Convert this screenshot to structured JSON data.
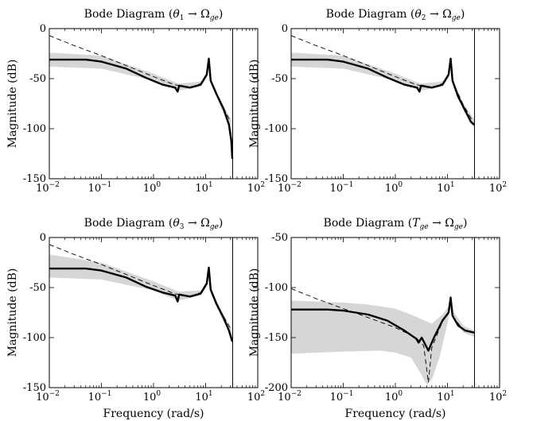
{
  "chart_data": [
    {
      "type": "line",
      "title": "Bode Diagram (θ₁ → Ω_ge)",
      "xlabel": "",
      "ylabel": "Magnitude (dB)",
      "xscale": "log",
      "xlim": [
        0.01,
        100
      ],
      "ylim": [
        -150,
        0
      ],
      "x_ticks": [
        "10^-2",
        "10^-1",
        "10^0",
        "10^1",
        "10^2"
      ],
      "y_ticks": [
        "0",
        "-50",
        "-100",
        "-150"
      ],
      "vline_x": 33,
      "grid": false,
      "series": [
        {
          "style": "solid-thick",
          "points": [
            [
              0.01,
              -31
            ],
            [
              0.05,
              -31
            ],
            [
              0.1,
              -33
            ],
            [
              0.3,
              -40
            ],
            [
              0.7,
              -49
            ],
            [
              1.5,
              -56
            ],
            [
              2.6,
              -59
            ],
            [
              2.9,
              -63
            ],
            [
              3.1,
              -57
            ],
            [
              5,
              -59
            ],
            [
              8,
              -56
            ],
            [
              10.5,
              -46
            ],
            [
              11.5,
              -30
            ],
            [
              12.5,
              -52
            ],
            [
              16,
              -65
            ],
            [
              22,
              -80
            ],
            [
              28,
              -96
            ],
            [
              31,
              -112
            ],
            [
              32.5,
              -130
            ]
          ]
        },
        {
          "style": "dashed",
          "points": [
            [
              0.01,
              -7
            ],
            [
              0.03,
              -17
            ],
            [
              0.1,
              -27
            ],
            [
              0.3,
              -37
            ],
            [
              1,
              -48
            ],
            [
              2.5,
              -56
            ],
            [
              5,
              -59
            ],
            [
              8,
              -55
            ],
            [
              10.5,
              -45
            ],
            [
              11.5,
              -31
            ],
            [
              13,
              -55
            ],
            [
              20,
              -75
            ],
            [
              30,
              -93
            ]
          ]
        },
        {
          "style": "band",
          "upper": [
            [
              0.01,
              -24
            ],
            [
              0.1,
              -27
            ],
            [
              1,
              -45
            ],
            [
              3,
              -55
            ],
            [
              8,
              -53
            ],
            [
              10.5,
              -44
            ],
            [
              11.5,
              -29
            ],
            [
              13,
              -52
            ],
            [
              20,
              -73
            ],
            [
              30,
              -90
            ],
            [
              32.5,
              -110
            ]
          ],
          "lower": [
            [
              0.01,
              -38
            ],
            [
              0.1,
              -40
            ],
            [
              1,
              -52
            ],
            [
              3,
              -62
            ],
            [
              8,
              -58
            ],
            [
              10.5,
              -49
            ],
            [
              11.5,
              -33
            ],
            [
              13,
              -57
            ],
            [
              20,
              -80
            ],
            [
              30,
              -97
            ],
            [
              32.5,
              -128
            ]
          ]
        }
      ]
    },
    {
      "type": "line",
      "title": "Bode Diagram (θ₂ → Ω_ge)",
      "xlabel": "",
      "ylabel": "Magnitude (dB)",
      "xscale": "log",
      "xlim": [
        0.01,
        100
      ],
      "ylim": [
        -150,
        0
      ],
      "x_ticks": [
        "10^-2",
        "10^-1",
        "10^0",
        "10^1",
        "10^2"
      ],
      "y_ticks": [
        "0",
        "-50",
        "-100",
        "-150"
      ],
      "vline_x": 33,
      "grid": false,
      "series": [
        {
          "style": "solid-thick",
          "points": [
            [
              0.01,
              -31
            ],
            [
              0.05,
              -31
            ],
            [
              0.1,
              -33
            ],
            [
              0.3,
              -40
            ],
            [
              0.7,
              -49
            ],
            [
              1.5,
              -56
            ],
            [
              2.6,
              -59
            ],
            [
              2.9,
              -63
            ],
            [
              3.1,
              -57
            ],
            [
              5,
              -59
            ],
            [
              8,
              -56
            ],
            [
              10.5,
              -46
            ],
            [
              11.5,
              -30
            ],
            [
              12.5,
              -52
            ],
            [
              16,
              -68
            ],
            [
              22,
              -82
            ],
            [
              28,
              -93
            ],
            [
              32.5,
              -96
            ]
          ]
        },
        {
          "style": "dashed",
          "points": [
            [
              0.01,
              -7
            ],
            [
              0.03,
              -17
            ],
            [
              0.1,
              -27
            ],
            [
              0.3,
              -37
            ],
            [
              1,
              -48
            ],
            [
              2.5,
              -56
            ],
            [
              5,
              -59
            ],
            [
              8,
              -55
            ],
            [
              10.5,
              -45
            ],
            [
              11.5,
              -31
            ],
            [
              13,
              -55
            ],
            [
              20,
              -76
            ],
            [
              30,
              -92
            ]
          ]
        },
        {
          "style": "band",
          "upper": [
            [
              0.01,
              -24
            ],
            [
              0.1,
              -27
            ],
            [
              1,
              -45
            ],
            [
              3,
              -55
            ],
            [
              8,
              -53
            ],
            [
              10.5,
              -44
            ],
            [
              11.5,
              -29
            ],
            [
              13,
              -52
            ],
            [
              20,
              -74
            ],
            [
              30,
              -88
            ],
            [
              32.5,
              -90
            ]
          ],
          "lower": [
            [
              0.01,
              -38
            ],
            [
              0.1,
              -40
            ],
            [
              1,
              -52
            ],
            [
              3,
              -62
            ],
            [
              8,
              -58
            ],
            [
              10.5,
              -49
            ],
            [
              11.5,
              -33
            ],
            [
              13,
              -57
            ],
            [
              20,
              -81
            ],
            [
              30,
              -97
            ],
            [
              32.5,
              -99
            ]
          ]
        }
      ]
    },
    {
      "type": "line",
      "title": "Bode Diagram (θ₃ → Ω_ge)",
      "xlabel": "Frequency (rad/s)",
      "ylabel": "Magnitude (dB)",
      "xscale": "log",
      "xlim": [
        0.01,
        100
      ],
      "ylim": [
        -150,
        0
      ],
      "x_ticks": [
        "10^-2",
        "10^-1",
        "10^0",
        "10^1",
        "10^2"
      ],
      "y_ticks": [
        "0",
        "-50",
        "-100",
        "-150"
      ],
      "vline_x": 33,
      "grid": false,
      "series": [
        {
          "style": "solid-thick",
          "points": [
            [
              0.01,
              -31
            ],
            [
              0.05,
              -31
            ],
            [
              0.1,
              -33
            ],
            [
              0.3,
              -40
            ],
            [
              0.7,
              -49
            ],
            [
              1.5,
              -55
            ],
            [
              2.6,
              -58
            ],
            [
              2.9,
              -64
            ],
            [
              3.1,
              -57
            ],
            [
              5,
              -59
            ],
            [
              8,
              -56
            ],
            [
              10.5,
              -46
            ],
            [
              11.5,
              -30
            ],
            [
              12.5,
              -52
            ],
            [
              16,
              -66
            ],
            [
              22,
              -80
            ],
            [
              28,
              -93
            ],
            [
              32.5,
              -104
            ]
          ]
        },
        {
          "style": "dashed",
          "points": [
            [
              0.01,
              -7
            ],
            [
              0.03,
              -17
            ],
            [
              0.1,
              -27
            ],
            [
              0.3,
              -37
            ],
            [
              1,
              -48
            ],
            [
              2.5,
              -56
            ],
            [
              5,
              -59
            ],
            [
              8,
              -55
            ],
            [
              10.5,
              -45
            ],
            [
              11.5,
              -31
            ],
            [
              13,
              -55
            ],
            [
              20,
              -75
            ],
            [
              30,
              -91
            ]
          ]
        },
        {
          "style": "band",
          "upper": [
            [
              0.01,
              -17
            ],
            [
              0.1,
              -25
            ],
            [
              1,
              -44
            ],
            [
              3,
              -54
            ],
            [
              8,
              -53
            ],
            [
              10.5,
              -44
            ],
            [
              11.5,
              -29
            ],
            [
              13,
              -52
            ],
            [
              20,
              -73
            ],
            [
              30,
              -89
            ],
            [
              32.5,
              -97
            ]
          ],
          "lower": [
            [
              0.01,
              -40
            ],
            [
              0.1,
              -42
            ],
            [
              1,
              -53
            ],
            [
              3,
              -63
            ],
            [
              8,
              -58
            ],
            [
              10.5,
              -49
            ],
            [
              11.5,
              -33
            ],
            [
              13,
              -57
            ],
            [
              20,
              -80
            ],
            [
              30,
              -97
            ],
            [
              32.5,
              -107
            ]
          ]
        }
      ]
    },
    {
      "type": "line",
      "title": "Bode Diagram (T_ge → Ω_ge)",
      "xlabel": "Frequency (rad/s)",
      "ylabel": "Magnitude (dB)",
      "xscale": "log",
      "xlim": [
        0.01,
        100
      ],
      "ylim": [
        -200,
        -50
      ],
      "x_ticks": [
        "10^-2",
        "10^-1",
        "10^0",
        "10^1",
        "10^2"
      ],
      "y_ticks": [
        "-50",
        "-100",
        "-150",
        "-200"
      ],
      "vline_x": 33,
      "grid": false,
      "series": [
        {
          "style": "solid-thick",
          "points": [
            [
              0.01,
              -122
            ],
            [
              0.05,
              -122
            ],
            [
              0.1,
              -123
            ],
            [
              0.3,
              -127
            ],
            [
              0.7,
              -133
            ],
            [
              1.5,
              -143
            ],
            [
              2.5,
              -151
            ],
            [
              2.8,
              -155
            ],
            [
              3.2,
              -150
            ],
            [
              4.3,
              -163
            ],
            [
              5.5,
              -150
            ],
            [
              8,
              -133
            ],
            [
              10.5,
              -125
            ],
            [
              11.5,
              -110
            ],
            [
              12.5,
              -128
            ],
            [
              16,
              -138
            ],
            [
              22,
              -143
            ],
            [
              32.5,
              -145
            ]
          ]
        },
        {
          "style": "dashed",
          "points": [
            [
              0.01,
              -101
            ],
            [
              0.03,
              -111
            ],
            [
              0.1,
              -121
            ],
            [
              0.3,
              -130
            ],
            [
              1,
              -140
            ],
            [
              2.5,
              -150
            ],
            [
              3.5,
              -158
            ],
            [
              4.3,
              -195
            ],
            [
              5,
              -160
            ],
            [
              8,
              -134
            ],
            [
              10.5,
              -125
            ],
            [
              11.5,
              -112
            ],
            [
              13,
              -130
            ],
            [
              20,
              -142
            ],
            [
              32,
              -145
            ]
          ]
        },
        {
          "style": "band",
          "upper": [
            [
              0.01,
              -113
            ],
            [
              0.1,
              -115
            ],
            [
              0.3,
              -117
            ],
            [
              1,
              -121
            ],
            [
              2,
              -127
            ],
            [
              3,
              -131
            ],
            [
              5,
              -136
            ],
            [
              8,
              -127
            ],
            [
              10.5,
              -119
            ],
            [
              11.5,
              -107
            ],
            [
              13,
              -124
            ],
            [
              20,
              -138
            ],
            [
              32.5,
              -143
            ]
          ],
          "lower": [
            [
              0.01,
              -166
            ],
            [
              0.1,
              -164
            ],
            [
              0.5,
              -163
            ],
            [
              1,
              -165
            ],
            [
              2,
              -170
            ],
            [
              3,
              -185
            ],
            [
              4,
              -197
            ],
            [
              5,
              -192
            ],
            [
              7,
              -170
            ],
            [
              10.5,
              -131
            ],
            [
              11.5,
              -114
            ],
            [
              13,
              -131
            ],
            [
              20,
              -145
            ],
            [
              32.5,
              -149
            ]
          ]
        }
      ]
    }
  ]
}
